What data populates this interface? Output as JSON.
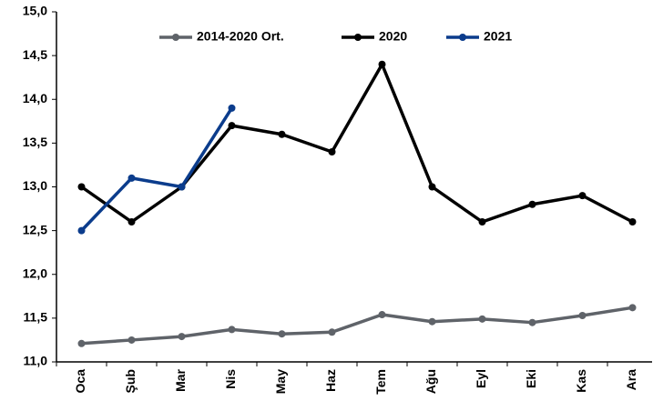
{
  "chart_data": {
    "type": "line",
    "categories": [
      "Oca",
      "Şub",
      "Mar",
      "Nis",
      "May",
      "Haz",
      "Tem",
      "Ağu",
      "Eyl",
      "Eki",
      "Kas",
      "Ara"
    ],
    "series": [
      {
        "name": "2014-2020 Ort.",
        "color": "#5f6369",
        "values": [
          11.21,
          11.25,
          11.29,
          11.37,
          11.32,
          11.34,
          11.54,
          11.46,
          11.49,
          11.45,
          11.53,
          11.62
        ]
      },
      {
        "name": "2020",
        "color": "#000000",
        "values": [
          13.0,
          12.6,
          13.0,
          13.7,
          13.6,
          13.4,
          14.4,
          13.0,
          12.6,
          12.8,
          12.9,
          12.6
        ]
      },
      {
        "name": "2021",
        "color": "#0b3c8c",
        "values": [
          12.5,
          13.1,
          13.0,
          13.9,
          null,
          null,
          null,
          null,
          null,
          null,
          null,
          null
        ]
      }
    ],
    "ylim": [
      11.0,
      15.0
    ],
    "yticks": [
      {
        "value": 11.0,
        "label": "11,0"
      },
      {
        "value": 11.5,
        "label": "11,5"
      },
      {
        "value": 12.0,
        "label": "12,0"
      },
      {
        "value": 12.5,
        "label": "12,5"
      },
      {
        "value": 13.0,
        "label": "13,0"
      },
      {
        "value": 13.5,
        "label": "13,5"
      },
      {
        "value": 14.0,
        "label": "14,0"
      },
      {
        "value": 14.5,
        "label": "14,5"
      },
      {
        "value": 15.0,
        "label": "15,0"
      }
    ],
    "grid": false,
    "legend": "top"
  }
}
